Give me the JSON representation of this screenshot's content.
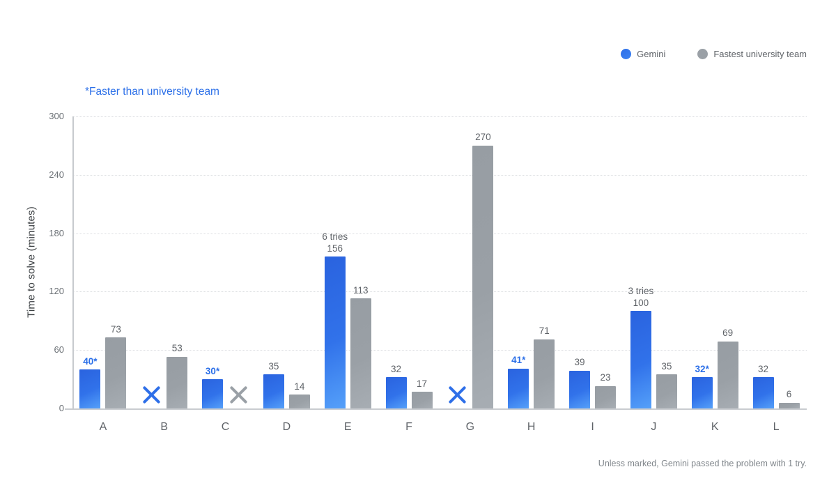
{
  "legend": [
    {
      "label": "Gemini",
      "color": "#2E6FE8"
    },
    {
      "label": "Fastest university team",
      "color": "#9AA0A6"
    }
  ],
  "note": "*Faster than university team",
  "footnote": "Unless marked, Gemini passed the problem with 1 try.",
  "colors": {
    "gemini_blue": "#2E6FE8",
    "gemini_gradient_light": "#55A0F9",
    "university_gray": "#9AA0A6",
    "label_gray": "#5F6368",
    "axis_gray": "#C9CCD0",
    "grid_gray": "#DCDEE1",
    "muted_text": "#80868B"
  },
  "chart_data": {
    "type": "bar",
    "title": "",
    "xlabel": "",
    "ylabel": "Time to solve (minutes)",
    "ylim": [
      0,
      300
    ],
    "yticks": [
      0,
      60,
      120,
      180,
      240,
      300
    ],
    "grid": "dotted horizontal",
    "legend_position": "top-right",
    "failed_marker": "X (did not solve)",
    "categories": [
      "A",
      "B",
      "C",
      "D",
      "E",
      "F",
      "G",
      "H",
      "I",
      "J",
      "K",
      "L"
    ],
    "series": [
      {
        "name": "Gemini",
        "values": [
          40,
          null,
          30,
          35,
          156,
          32,
          null,
          41,
          39,
          100,
          32,
          32
        ]
      },
      {
        "name": "Fastest university team",
        "values": [
          73,
          53,
          null,
          14,
          113,
          17,
          270,
          71,
          23,
          35,
          69,
          6
        ]
      }
    ],
    "bars": [
      {
        "category": "A",
        "gemini": {
          "value": 40,
          "label": "40*",
          "starred": true
        },
        "university": {
          "value": 73,
          "label": "73"
        }
      },
      {
        "category": "B",
        "gemini": {
          "failed": true
        },
        "university": {
          "value": 53,
          "label": "53"
        }
      },
      {
        "category": "C",
        "gemini": {
          "value": 30,
          "label": "30*",
          "starred": true
        },
        "university": {
          "failed": true
        }
      },
      {
        "category": "D",
        "gemini": {
          "value": 35,
          "label": "35"
        },
        "university": {
          "value": 14,
          "label": "14"
        }
      },
      {
        "category": "E",
        "gemini": {
          "value": 156,
          "label": "156",
          "tries": "6 tries"
        },
        "university": {
          "value": 113,
          "label": "113"
        }
      },
      {
        "category": "F",
        "gemini": {
          "value": 32,
          "label": "32"
        },
        "university": {
          "value": 17,
          "label": "17"
        }
      },
      {
        "category": "G",
        "gemini": {
          "failed": true
        },
        "university": {
          "value": 270,
          "label": "270"
        }
      },
      {
        "category": "H",
        "gemini": {
          "value": 41,
          "label": "41*",
          "starred": true
        },
        "university": {
          "value": 71,
          "label": "71"
        }
      },
      {
        "category": "I",
        "gemini": {
          "value": 39,
          "label": "39"
        },
        "university": {
          "value": 23,
          "label": "23"
        }
      },
      {
        "category": "J",
        "gemini": {
          "value": 100,
          "label": "100",
          "tries": "3 tries"
        },
        "university": {
          "value": 35,
          "label": "35"
        }
      },
      {
        "category": "K",
        "gemini": {
          "value": 32,
          "label": "32*",
          "starred": true
        },
        "university": {
          "value": 69,
          "label": "69"
        }
      },
      {
        "category": "L",
        "gemini": {
          "value": 32,
          "label": "32"
        },
        "university": {
          "value": 6,
          "label": "6"
        }
      }
    ]
  }
}
